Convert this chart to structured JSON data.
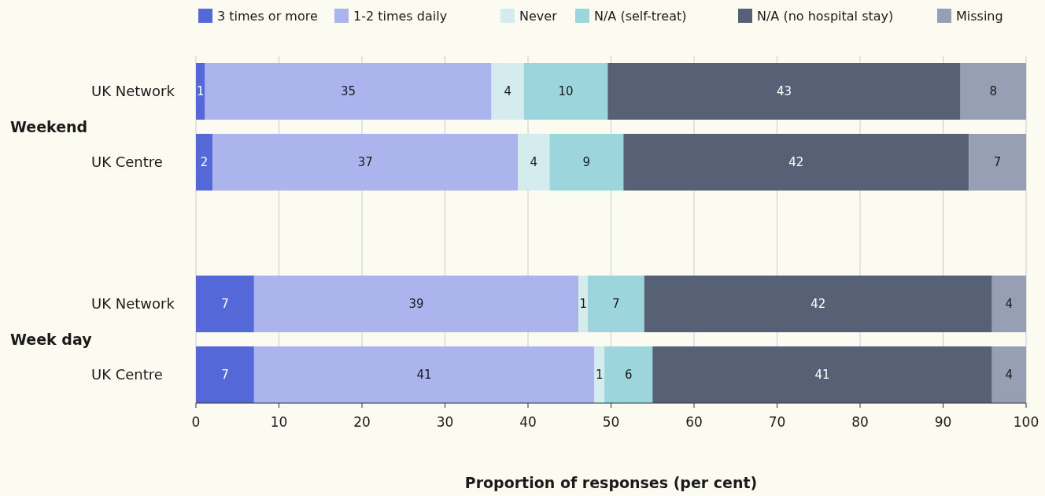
{
  "chart_data": {
    "type": "bar",
    "orientation": "horizontal",
    "stacked": true,
    "categories": [
      "UK Network",
      "UK Centre",
      null,
      "UK Network",
      "UK Centre"
    ],
    "series": [
      {
        "name": "3 times or more",
        "color": "#5468d8",
        "values": [
          1.1,
          2.0,
          null,
          7.0,
          7.0
        ],
        "value_labels": [
          "1",
          "2",
          null,
          "7",
          "7"
        ]
      },
      {
        "name": "1-2 times daily",
        "color": "#abb4ec",
        "values": [
          34.5,
          36.8,
          null,
          39.1,
          41.0
        ],
        "value_labels": [
          "35",
          "37",
          null,
          "39",
          "41"
        ]
      },
      {
        "name": "Never",
        "color": "#d5ecee",
        "values": [
          3.9,
          3.8,
          null,
          1.1,
          1.2
        ],
        "value_labels": [
          "4",
          "4",
          null,
          "1",
          "1"
        ]
      },
      {
        "name": "N/A (self-treat)",
        "color": "#9dd5dc",
        "values": [
          10.1,
          8.9,
          null,
          6.8,
          5.8
        ],
        "value_labels": [
          "10",
          "9",
          null,
          "7",
          "6"
        ]
      },
      {
        "name": "N/A (no hospital stay)",
        "color": "#576176",
        "values": [
          42.5,
          41.6,
          null,
          41.9,
          40.9
        ],
        "value_labels": [
          "43",
          "42",
          null,
          "42",
          "41"
        ]
      },
      {
        "name": "Missing",
        "color": "#979fb4",
        "values": [
          7.9,
          6.9,
          null,
          4.1,
          4.1
        ],
        "value_labels": [
          "8",
          "7",
          null,
          "4",
          "4"
        ]
      }
    ],
    "xlim": [
      0,
      100
    ],
    "xticks": [
      0,
      10,
      20,
      30,
      40,
      50,
      60,
      70,
      80,
      90,
      100
    ],
    "xlabel": "Proportion of responses (per cent)",
    "annotations": [
      "Weekend",
      "Week day"
    ],
    "grid": "x",
    "legend": "top"
  }
}
